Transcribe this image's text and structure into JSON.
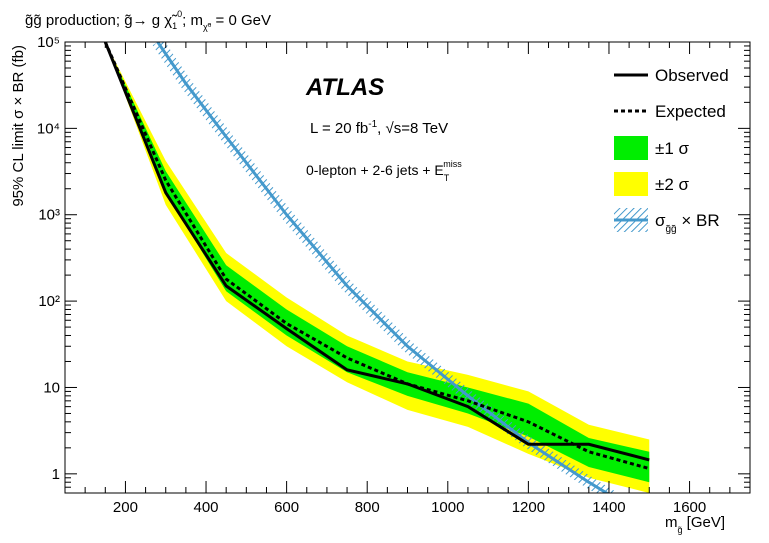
{
  "chart_data": {
    "type": "line",
    "title": "g̃g̃ production; g̃→ g χ̃₁⁰; m χ̃₁⁰ = 0 GeV",
    "xlabel": "m g̃ [GeV]",
    "ylabel": "95% CL limit σ × BR (fb)",
    "xlim": [
      50,
      1750
    ],
    "ylim": [
      0.6,
      100000
    ],
    "yscale": "log",
    "x_ticks": [
      200,
      400,
      600,
      800,
      1000,
      1200,
      1400,
      1600
    ],
    "x_tick_labels": [
      "200",
      "400",
      "600",
      "800",
      "1000",
      "1200",
      "1400",
      "1600"
    ],
    "y_ticks": [
      1,
      10,
      100,
      1000,
      10000,
      100000
    ],
    "y_tick_labels": [
      "1",
      "10",
      "10²",
      "10³",
      "10⁴",
      "10⁵"
    ],
    "grid": false,
    "legend_position": "top-right",
    "annotations": {
      "atlas": "ATLAS",
      "lumi": "L = 20 fb⁻¹,  √s=8 TeV",
      "selection": "0-lepton + 2-6 jets + E_T^miss"
    },
    "legend": [
      {
        "key": "observed",
        "label": "Observed"
      },
      {
        "key": "expected",
        "label": "Expected"
      },
      {
        "key": "band1",
        "label": "±1 σ"
      },
      {
        "key": "band2",
        "label": "±2 σ"
      },
      {
        "key": "xsec",
        "label": "σ g̃g̃ × BR"
      }
    ],
    "colors": {
      "observed": "#000000",
      "expected": "#000000",
      "band1": "#00ee00",
      "band2": "#ffff00",
      "xsec": "#4499cc"
    },
    "series": [
      {
        "name": "Observed",
        "x": [
          150,
          300,
          450,
          600,
          750,
          900,
          1050,
          1200,
          1350,
          1500
        ],
        "y": [
          100000,
          1800,
          150,
          48,
          16,
          11,
          6,
          2.2,
          2.2,
          1.45
        ]
      },
      {
        "name": "Expected",
        "x": [
          150,
          300,
          450,
          600,
          750,
          900,
          1050,
          1200,
          1350,
          1500
        ],
        "y": [
          100000,
          2500,
          180,
          55,
          22,
          11,
          7,
          4,
          1.8,
          1.15
        ]
      },
      {
        "name": "σ g̃g̃ × BR",
        "x": [
          280,
          350,
          450,
          600,
          750,
          900,
          1050,
          1200,
          1350,
          1500
        ],
        "y": [
          100000,
          33000,
          8000,
          1000,
          150,
          30,
          8,
          2.3,
          0.8,
          0.3
        ]
      }
    ],
    "bands": [
      {
        "name": "±1 σ",
        "x": [
          150,
          300,
          450,
          600,
          750,
          900,
          1050,
          1200,
          1350,
          1500
        ],
        "low": [
          100000,
          1800,
          130,
          40,
          15,
          8,
          5,
          2.7,
          1.2,
          0.8
        ],
        "high": [
          100000,
          3200,
          260,
          80,
          30,
          15,
          10,
          6.5,
          2.6,
          1.8
        ]
      },
      {
        "name": "±2 σ",
        "x": [
          150,
          300,
          450,
          600,
          750,
          900,
          1050,
          1200,
          1350,
          1500
        ],
        "low": [
          100000,
          1300,
          100,
          30,
          11.5,
          5.5,
          3.5,
          1.7,
          0.9,
          0.6
        ],
        "high": [
          100000,
          4200,
          360,
          110,
          40,
          20,
          14,
          9,
          3.7,
          2.5
        ]
      }
    ]
  }
}
